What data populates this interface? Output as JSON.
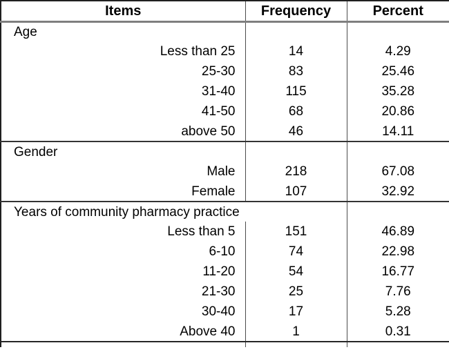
{
  "chart_data": {
    "type": "table",
    "columns": [
      "Items",
      "Frequency",
      "Percent"
    ],
    "sections": [
      {
        "label": "Age",
        "rows": [
          {
            "label": "Less than 25",
            "frequency": "14",
            "percent": "4.29"
          },
          {
            "label": "25-30",
            "frequency": "83",
            "percent": "25.46"
          },
          {
            "label": "31-40",
            "frequency": "115",
            "percent": "35.28"
          },
          {
            "label": "41-50",
            "frequency": "68",
            "percent": "20.86"
          },
          {
            "label": "above 50",
            "frequency": "46",
            "percent": "14.11"
          }
        ]
      },
      {
        "label": "Gender",
        "rows": [
          {
            "label": "Male",
            "frequency": "218",
            "percent": "67.08"
          },
          {
            "label": "Female",
            "frequency": "107",
            "percent": "32.92"
          }
        ]
      },
      {
        "label": "Years of community pharmacy practice",
        "rows": [
          {
            "label": "Less than 5",
            "frequency": "151",
            "percent": "46.89"
          },
          {
            "label": "6-10",
            "frequency": "74",
            "percent": "22.98"
          },
          {
            "label": "11-20",
            "frequency": "54",
            "percent": "16.77"
          },
          {
            "label": "21-30",
            "frequency": "25",
            "percent": "7.76"
          },
          {
            "label": "30-40",
            "frequency": "17",
            "percent": "5.28"
          },
          {
            "label": "Above 40",
            "frequency": "1",
            "percent": "0.31"
          }
        ]
      }
    ],
    "colors": {
      "background": "#ffffff",
      "text": "#000000",
      "outer_border": "#1f1f1f",
      "header_separator": "#7f7f7f",
      "section_separator": "#333333",
      "column_divider": "#4a4a4a"
    }
  }
}
